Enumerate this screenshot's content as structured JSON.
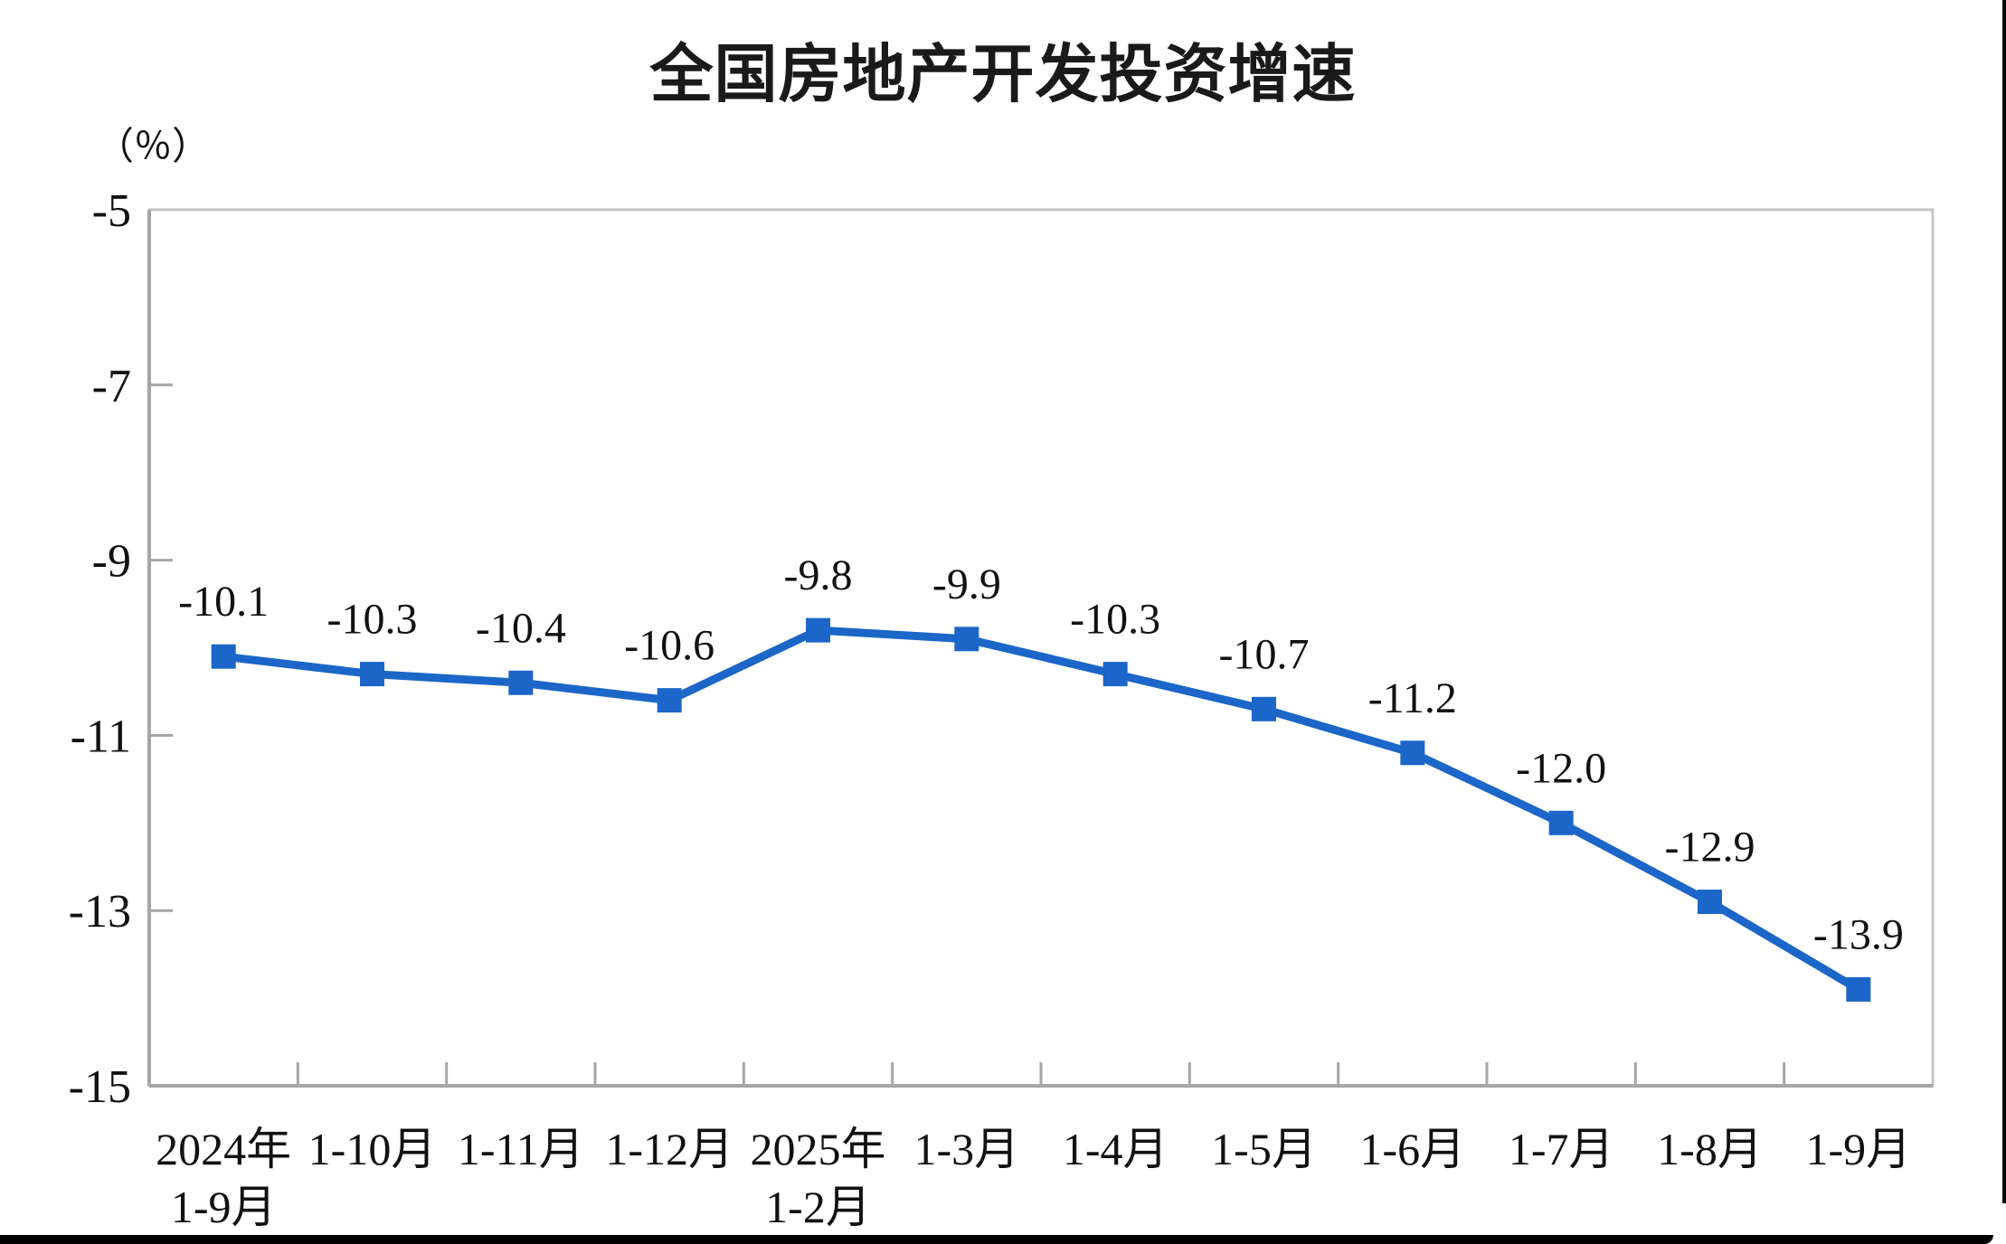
{
  "page": {
    "title": "全国房地产开发投资增速"
  },
  "chart_data": {
    "type": "line",
    "title": "全国房地产开发投资增速",
    "unit_label": "（％）",
    "xlabel": "",
    "ylabel": "（％）",
    "ylim": [
      -15,
      -5
    ],
    "yticks": [
      -5,
      -7,
      -9,
      -11,
      -13,
      -15
    ],
    "ytick_labels": [
      "-5",
      "-7",
      "-9",
      "-11",
      "-13",
      "-15"
    ],
    "categories": [
      [
        "2024年",
        "1-9月"
      ],
      [
        "1-10月"
      ],
      [
        "1-11月"
      ],
      [
        "1-12月"
      ],
      [
        "2025年",
        "1-2月"
      ],
      [
        "1-3月"
      ],
      [
        "1-4月"
      ],
      [
        "1-5月"
      ],
      [
        "1-6月"
      ],
      [
        "1-7月"
      ],
      [
        "1-8月"
      ],
      [
        "1-9月"
      ]
    ],
    "values": [
      -10.1,
      -10.3,
      -10.4,
      -10.6,
      -9.8,
      -9.9,
      -10.3,
      -10.7,
      -11.2,
      -12.0,
      -12.9,
      -13.9
    ],
    "point_labels": [
      "-10.1",
      "-10.3",
      "-10.4",
      "-10.6",
      "-9.8",
      "-9.9",
      "-10.3",
      "-10.7",
      "-11.2",
      "-12.0",
      "-12.9",
      "-13.9"
    ],
    "grid": false,
    "legend_position": "none",
    "marker_shape": "square",
    "colors": {
      "series": "#1b66c8",
      "axis": "#a6a6a6",
      "plot_border": "#c6c6c6",
      "labels": "#111111",
      "title": "#1a1a1a"
    }
  }
}
